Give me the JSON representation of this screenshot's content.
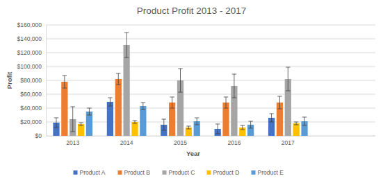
{
  "chart_data": {
    "type": "bar",
    "title": "Product Profit 2013 - 2017",
    "x_label": "Year",
    "y_label": "Profit",
    "categories": [
      "2013",
      "2014",
      "2015",
      "2016",
      "2017"
    ],
    "series": [
      {
        "name": "Product A",
        "color": "#4472c4",
        "values": [
          19000,
          49000,
          16000,
          10000,
          26000
        ],
        "errors": [
          7000,
          6000,
          8000,
          7000,
          6000
        ]
      },
      {
        "name": "Product B",
        "color": "#ed7d31",
        "values": [
          78000,
          82000,
          48000,
          48000,
          48000
        ],
        "errors": [
          9000,
          8000,
          8000,
          8000,
          9000
        ]
      },
      {
        "name": "Product C",
        "color": "#a5a5a5",
        "values": [
          24000,
          131000,
          80000,
          72000,
          82000
        ],
        "errors": [
          18000,
          18000,
          17000,
          17000,
          17000
        ]
      },
      {
        "name": "Product D",
        "color": "#ffc000",
        "values": [
          17000,
          20000,
          12000,
          12000,
          18000
        ],
        "errors": [
          2000,
          2000,
          2000,
          3000,
          2000
        ]
      },
      {
        "name": "Product E",
        "color": "#5b9bd5",
        "values": [
          35000,
          43000,
          21000,
          16000,
          21000
        ],
        "errors": [
          5000,
          5000,
          5000,
          5000,
          6000
        ]
      }
    ],
    "ylim": [
      0,
      160000
    ],
    "yticks": [
      {
        "value": 0,
        "label": "$0"
      },
      {
        "value": 20000,
        "label": "$20,000"
      },
      {
        "value": 40000,
        "label": "$40,000"
      },
      {
        "value": 60000,
        "label": "$60,000"
      },
      {
        "value": 80000,
        "label": "$80,000"
      },
      {
        "value": 100000,
        "label": "$100,000"
      },
      {
        "value": 120000,
        "label": "$120,000"
      },
      {
        "value": 140000,
        "label": "$140,000"
      },
      {
        "value": 160000,
        "label": "$160,000"
      }
    ],
    "grid": true,
    "legend": "bottom"
  }
}
